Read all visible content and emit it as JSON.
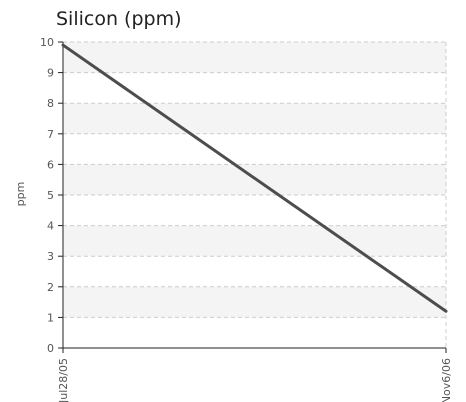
{
  "chart_data": {
    "type": "line",
    "title": "Silicon (ppm)",
    "xlabel": "",
    "ylabel": "ppm",
    "x": [
      "Jul28/05",
      "Nov6/06"
    ],
    "series": [
      {
        "values": [
          9.9,
          1.2
        ]
      }
    ],
    "ylim": [
      0,
      10
    ],
    "yticks": [
      0,
      1,
      2,
      3,
      4,
      5,
      6,
      7,
      8,
      9,
      10
    ],
    "grid": true,
    "alternating_bands": true,
    "line_color": "#4d4d4d",
    "grid_color": "#cccccc",
    "band_color": "#f4f4f4",
    "axis_color": "#222222"
  }
}
